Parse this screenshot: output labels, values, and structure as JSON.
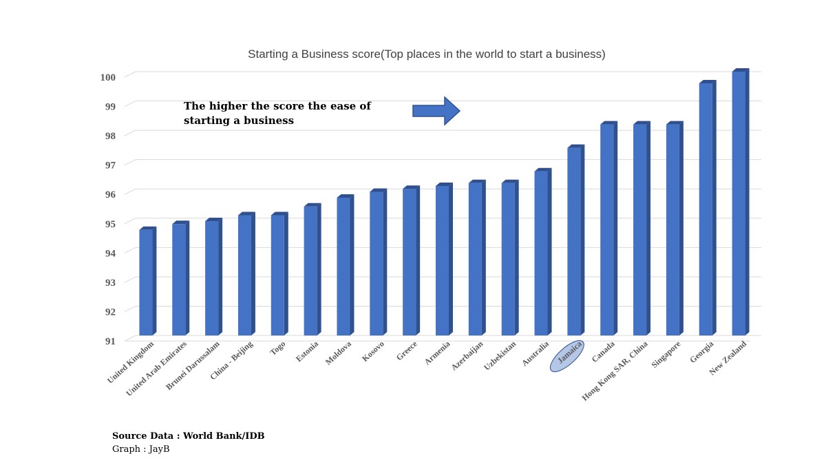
{
  "chart_data": {
    "type": "bar",
    "title": "Starting a Business score(Top places in the world to start a business)",
    "categories": [
      "United Kingdom",
      "United Arab Emirates",
      "Brunei Darussalam",
      "China - Beijing",
      "Togo",
      "Estonia",
      "Moldova",
      "Kosovo",
      "Greece",
      "Armenia",
      "Azerbaijan",
      "Uzbekistan",
      "Australia",
      "Jamaica",
      "Canada",
      "Hong Kong SAR, China",
      "Singapore",
      "Georgia",
      "New Zealand"
    ],
    "values": [
      94.6,
      94.8,
      94.9,
      95.1,
      95.1,
      95.4,
      95.7,
      95.9,
      96.0,
      96.1,
      96.2,
      96.2,
      96.6,
      97.4,
      98.2,
      98.2,
      98.2,
      99.6,
      100
    ],
    "ylim": [
      91,
      100
    ],
    "yticks": [
      "91",
      "92",
      "93",
      "94",
      "95",
      "96",
      "97",
      "98",
      "99",
      "100"
    ],
    "grid": true,
    "bar_color": "#4472C4",
    "highlight": "Jamaica",
    "highlight_color": "#B4C7E7",
    "annotation": {
      "lines": [
        "The higher the score the ease of",
        "starting a business"
      ],
      "icon": "right-arrow-icon"
    }
  },
  "footer": {
    "source": "Source  Data : World Bank/IDB",
    "credit": "Graph : JayB"
  }
}
